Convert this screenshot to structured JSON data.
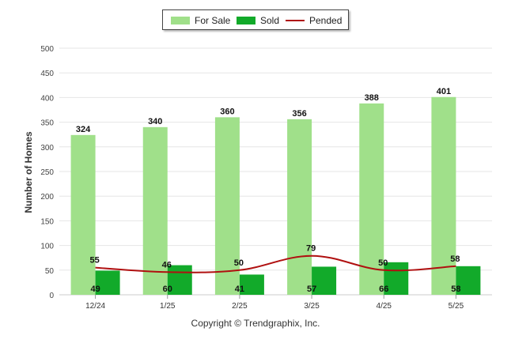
{
  "legend": {
    "for_sale": "For Sale",
    "sold": "Sold",
    "pended": "Pended"
  },
  "colors": {
    "for_sale": "#a0e08a",
    "sold": "#12aa2a",
    "pended": "#b01010",
    "grid": "#e6e6e6"
  },
  "credit": "Copyright © Trendgraphix, Inc.",
  "chart_data": {
    "type": "bar",
    "categories": [
      "12/24",
      "1/25",
      "2/25",
      "3/25",
      "4/25",
      "5/25"
    ],
    "series": [
      {
        "name": "For Sale",
        "type": "bar",
        "values": [
          324,
          340,
          360,
          356,
          388,
          401
        ]
      },
      {
        "name": "Sold",
        "type": "bar",
        "values": [
          49,
          60,
          41,
          57,
          66,
          58
        ]
      },
      {
        "name": "Pended",
        "type": "line",
        "values": [
          55,
          46,
          50,
          79,
          50,
          58
        ]
      }
    ],
    "ylabel": "Number of Homes",
    "xlabel": "",
    "ylim": [
      0,
      500
    ],
    "yticks": [
      0,
      50,
      100,
      150,
      200,
      250,
      300,
      350,
      400,
      450,
      500
    ],
    "grid": true,
    "legend_position": "top-center"
  }
}
